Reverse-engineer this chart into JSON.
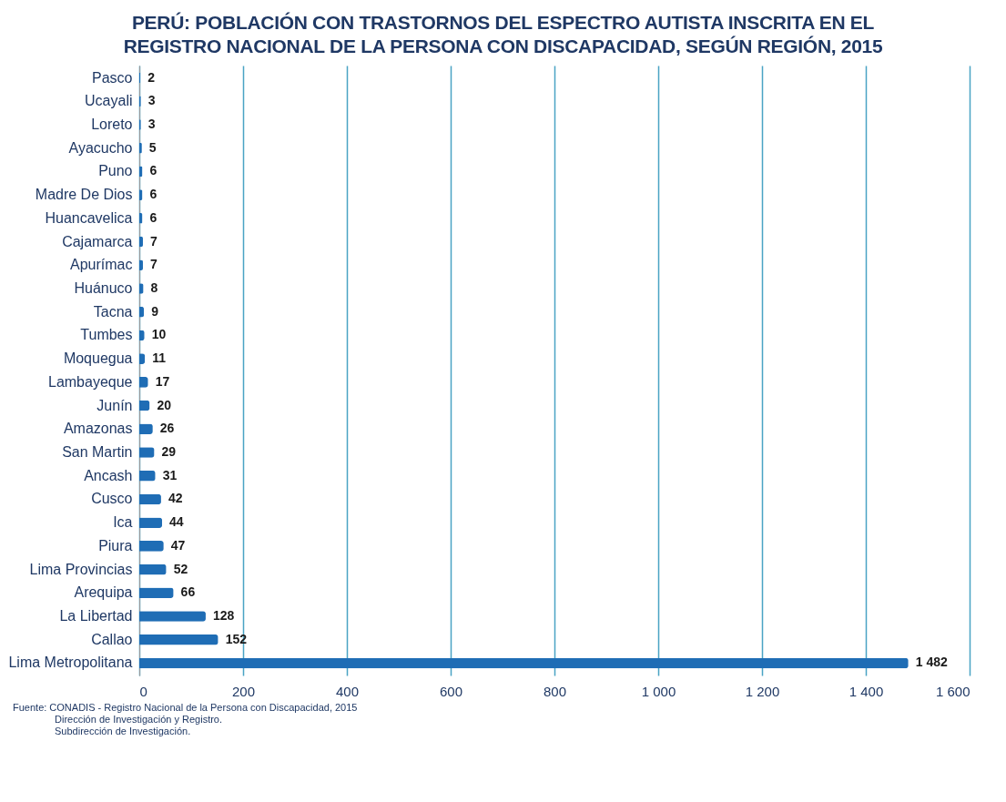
{
  "chart_data": {
    "type": "bar",
    "orientation": "horizontal",
    "title": "PERÚ: POBLACIÓN CON TRASTORNOS DEL ESPECTRO AUTISTA INSCRITA EN EL REGISTRO NACIONAL DE LA PERSONA CON DISCAPACIDAD, SEGÚN REGIÓN, 2015",
    "categories": [
      "Pasco",
      "Ucayali",
      "Loreto",
      "Ayacucho",
      "Puno",
      "Madre De Dios",
      "Huancavelica",
      "Cajamarca",
      "Apurímac",
      "Huánuco",
      "Tacna",
      "Tumbes",
      "Moquegua",
      "Lambayeque",
      "Junín",
      "Amazonas",
      "San Martin",
      "Ancash",
      "Cusco",
      "Ica",
      "Piura",
      "Lima Provincias",
      "Arequipa",
      "La Libertad",
      "Callao",
      "Lima Metropolitana"
    ],
    "values": [
      2,
      3,
      3,
      5,
      6,
      6,
      6,
      7,
      7,
      8,
      9,
      10,
      11,
      17,
      20,
      26,
      29,
      31,
      42,
      44,
      47,
      52,
      66,
      128,
      152,
      1482
    ],
    "value_labels": [
      "2",
      "3",
      "3",
      "5",
      "6",
      "6",
      "6",
      "7",
      "7",
      "8",
      "9",
      "10",
      "11",
      "17",
      "20",
      "26",
      "29",
      "31",
      "42",
      "44",
      "47",
      "52",
      "66",
      "128",
      "152",
      "1 482"
    ],
    "color": "#1f6db5",
    "xlim": [
      0,
      1600
    ],
    "xticks": [
      0,
      200,
      400,
      600,
      800,
      {
        "value": 1000,
        "label": "1 000"
      },
      {
        "value": 1200,
        "label": "1 200"
      },
      {
        "value": 1400,
        "label": "1 400"
      },
      {
        "value": 1600,
        "label": "1 600"
      }
    ],
    "grid": "x",
    "annotations": [
      "Fuente: CONADIS - Registro Nacional de la Persona con Discapacidad, 2015",
      "Dirección de Investigación y Registro.",
      "Subdirección de Investigación."
    ]
  }
}
